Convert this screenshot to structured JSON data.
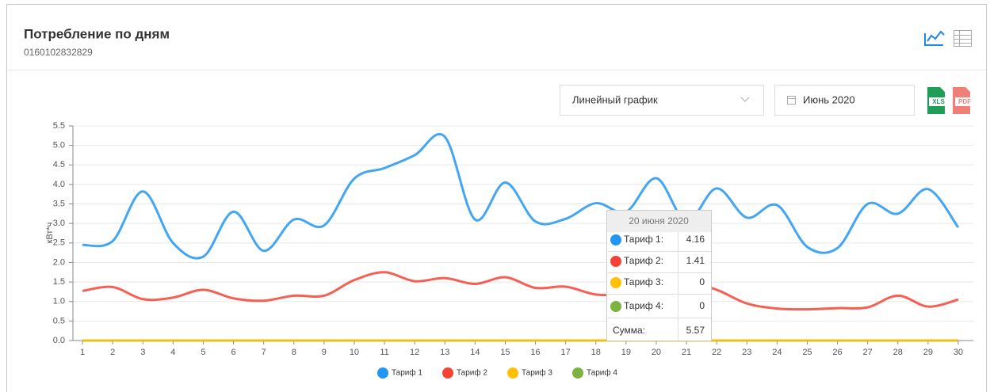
{
  "header": {
    "title": "Потребление по дням",
    "subtitle": "0160102832829"
  },
  "controls": {
    "chart_type": "Линейный график",
    "period": "Июнь 2020",
    "export_xls": "XLS",
    "export_pdf": "PDF"
  },
  "tooltip": {
    "title": "20 июня 2020",
    "rows": [
      {
        "label": "Тариф 1:",
        "value": 4.16
      },
      {
        "label": "Тариф 2:",
        "value": 1.41
      },
      {
        "label": "Тариф 3:",
        "value": 0
      },
      {
        "label": "Тариф 4:",
        "value": 0
      }
    ],
    "total": {
      "label": "Сумма:",
      "value": 5.57
    }
  },
  "chart_data": {
    "type": "line",
    "y_label": "кВт*ч",
    "categories": [
      "1",
      "2",
      "3",
      "4",
      "5",
      "6",
      "7",
      "8",
      "9",
      "10",
      "11",
      "12",
      "13",
      "14",
      "15",
      "16",
      "17",
      "18",
      "19",
      "20",
      "21",
      "22",
      "23",
      "24",
      "25",
      "26",
      "27",
      "28",
      "29",
      "30"
    ],
    "series": [
      {
        "name": "Тариф 1",
        "color": "#2196f3",
        "values": [
          2.45,
          2.55,
          3.82,
          2.5,
          2.15,
          3.3,
          2.3,
          3.1,
          2.95,
          4.15,
          4.42,
          4.75,
          5.22,
          3.1,
          4.05,
          3.05,
          3.12,
          3.52,
          3.3,
          4.16,
          3.05,
          3.9,
          3.15,
          3.47,
          2.4,
          2.37,
          3.5,
          3.25,
          3.88,
          2.9
        ]
      },
      {
        "name": "Тариф 2",
        "color": "#f44336",
        "values": [
          1.27,
          1.37,
          1.06,
          1.1,
          1.3,
          1.08,
          1.02,
          1.15,
          1.15,
          1.55,
          1.75,
          1.52,
          1.6,
          1.45,
          1.62,
          1.35,
          1.38,
          1.18,
          1.2,
          1.41,
          1.5,
          1.3,
          0.95,
          0.82,
          0.8,
          0.83,
          0.85,
          1.15,
          0.87,
          1.05
        ]
      },
      {
        "name": "Тариф 3",
        "color": "#ffc107",
        "values": [
          0,
          0,
          0,
          0,
          0,
          0,
          0,
          0,
          0,
          0,
          0,
          0,
          0,
          0,
          0,
          0,
          0,
          0,
          0,
          0,
          0,
          0,
          0,
          0,
          0,
          0,
          0,
          0,
          0,
          0
        ]
      },
      {
        "name": "Тариф 4",
        "color": "#7cb342",
        "values": [
          0,
          0,
          0,
          0,
          0,
          0,
          0,
          0,
          0,
          0,
          0,
          0,
          0,
          0,
          0,
          0,
          0,
          0,
          0,
          0,
          0,
          0,
          0,
          0,
          0,
          0,
          0,
          0,
          0,
          0
        ]
      }
    ],
    "ylim": [
      0,
      5.5
    ],
    "yticks": [
      {
        "value": 0,
        "label": "0.0"
      },
      0.5,
      {
        "value": 1,
        "label": "1.0"
      },
      1.5,
      {
        "value": 2,
        "label": "2.0"
      },
      2.5,
      {
        "value": 3,
        "label": "3.0"
      },
      3.5,
      {
        "value": 4,
        "label": "4.0"
      },
      4.5,
      {
        "value": 5,
        "label": "5.0"
      },
      5.5
    ],
    "grid": true,
    "legend": "bottom"
  }
}
